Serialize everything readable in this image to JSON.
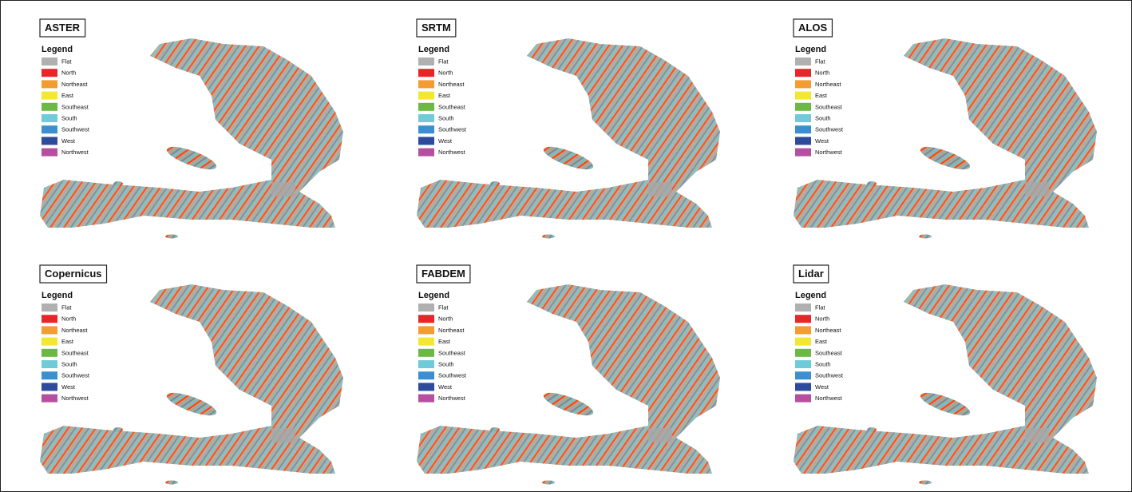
{
  "panels": [
    {
      "title": "ASTER"
    },
    {
      "title": "SRTM"
    },
    {
      "title": "ALOS"
    },
    {
      "title": "Copernicus"
    },
    {
      "title": "FABDEM"
    },
    {
      "title": "Lidar"
    }
  ],
  "legend": {
    "title": "Legend",
    "items": [
      {
        "label": "Flat",
        "color": "#b0b0b0"
      },
      {
        "label": "North",
        "color": "#e8262a"
      },
      {
        "label": "Northeast",
        "color": "#f39c33"
      },
      {
        "label": "East",
        "color": "#f2e731"
      },
      {
        "label": "Southeast",
        "color": "#6bb944"
      },
      {
        "label": "South",
        "color": "#6fcbd8"
      },
      {
        "label": "Southwest",
        "color": "#3b8fd0"
      },
      {
        "label": "West",
        "color": "#2e4a9c"
      },
      {
        "label": "Northwest",
        "color": "#b64fa0"
      }
    ]
  }
}
